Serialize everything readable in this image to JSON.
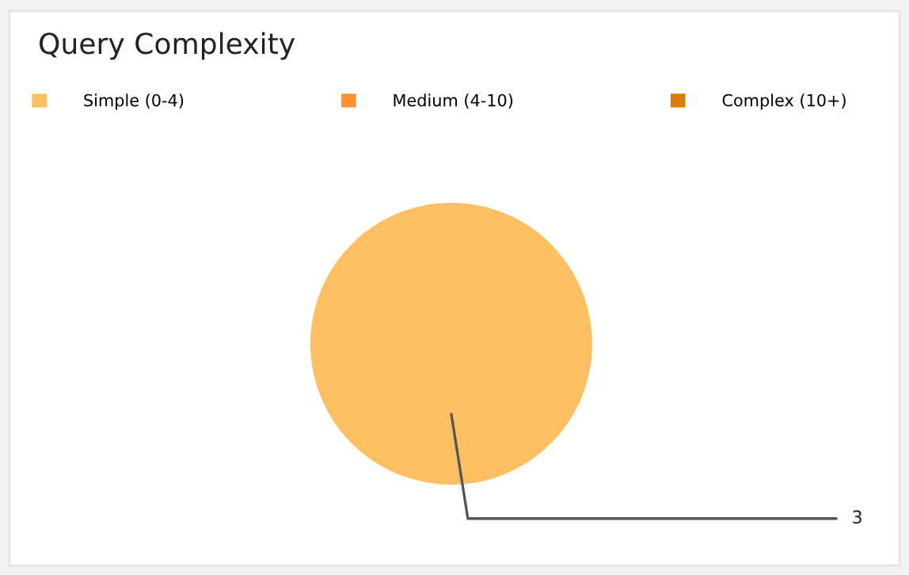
{
  "chart_data": {
    "type": "pie",
    "title": "Query Complexity",
    "categories": [
      "Simple (0-4)",
      "Medium (4-10)",
      "Complex (10+)"
    ],
    "values": [
      3,
      0,
      0
    ],
    "colors": [
      "#ffc064",
      "#ff9130",
      "#d97e0a"
    ],
    "value_labels": [
      "3",
      null,
      null
    ],
    "legend": "top left"
  }
}
